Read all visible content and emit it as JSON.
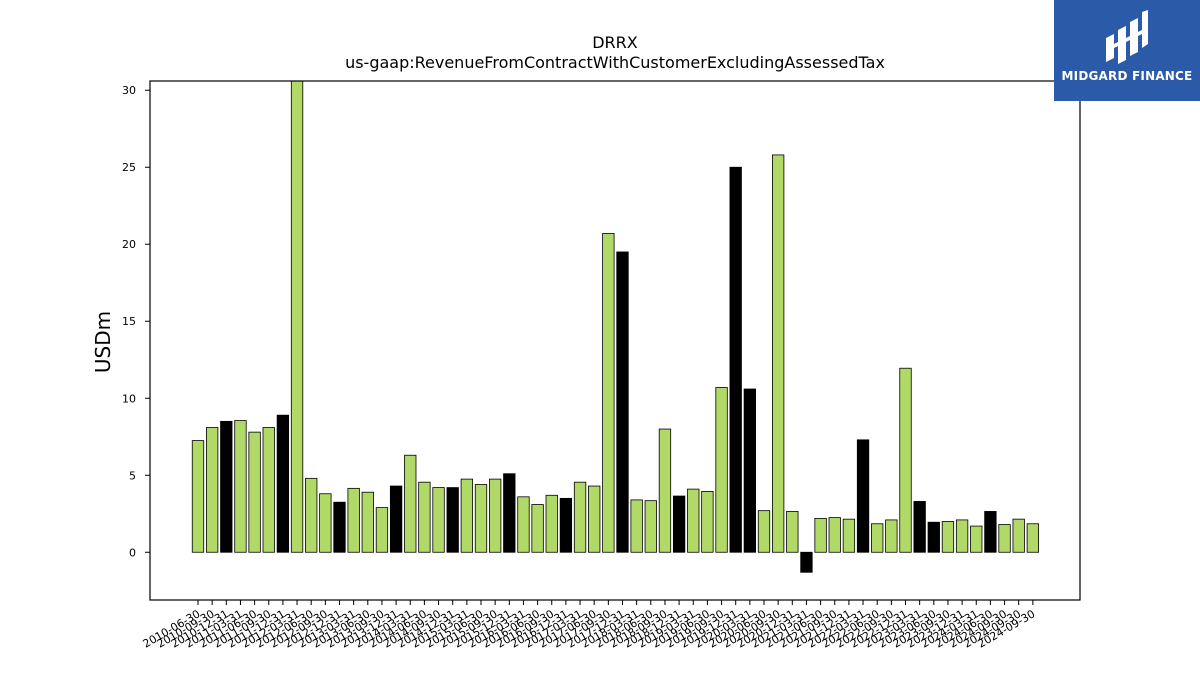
{
  "chart_data": {
    "type": "bar",
    "title": "DRRX",
    "subtitle": "us-gaap:RevenueFromContractWithCustomerExcludingAssessedTax",
    "ylabel": "USDm",
    "xlabel": "",
    "ylim": [
      -3.1,
      30.6
    ],
    "yticks": [
      0,
      5,
      10,
      15,
      20,
      25,
      30
    ],
    "grid": false,
    "colors": {
      "default": "#b0d967",
      "highlight": "#000000"
    },
    "categories": [
      "2010-06-30",
      "2010-09-30",
      "2010-12-31",
      "2011-03-31",
      "2011-06-30",
      "2011-09-30",
      "2011-12-31",
      "2012-03-31",
      "2012-06-30",
      "2012-09-30",
      "2012-12-31",
      "2013-03-31",
      "2013-06-30",
      "2013-09-30",
      "2013-12-31",
      "2014-03-31",
      "2014-06-30",
      "2014-09-30",
      "2014-12-31",
      "2015-03-31",
      "2015-06-30",
      "2015-09-30",
      "2015-12-31",
      "2016-03-31",
      "2016-06-30",
      "2016-09-30",
      "2016-12-31",
      "2017-03-31",
      "2017-06-30",
      "2017-09-30",
      "2017-12-31",
      "2018-03-31",
      "2018-06-30",
      "2018-09-30",
      "2018-12-31",
      "2019-03-31",
      "2019-06-30",
      "2019-09-30",
      "2019-12-31",
      "2020-03-31",
      "2020-06-30",
      "2020-09-30",
      "2020-12-31",
      "2021-03-31",
      "2021-06-30",
      "2021-09-30",
      "2021-12-31",
      "2022-03-31",
      "2022-06-30",
      "2022-09-30",
      "2022-12-31",
      "2023-03-31",
      "2023-06-30",
      "2023-09-30",
      "2023-12-31",
      "2024-03-31",
      "2024-06-30",
      "2024-09-30",
      "2024-09-30",
      "2024-09-30"
    ],
    "values": [
      7.25,
      8.1,
      8.5,
      8.55,
      7.8,
      8.1,
      8.9,
      30.7,
      4.8,
      3.8,
      3.25,
      4.15,
      3.9,
      2.9,
      4.3,
      6.3,
      4.55,
      4.2,
      4.2,
      4.75,
      4.4,
      4.75,
      5.1,
      3.6,
      3.1,
      3.7,
      3.5,
      4.55,
      4.3,
      20.7,
      19.5,
      3.4,
      3.35,
      8.0,
      3.65,
      4.1,
      3.95,
      10.7,
      25.0,
      10.6,
      2.7,
      25.8,
      2.65,
      -1.3,
      2.2,
      2.25,
      2.15,
      7.3,
      1.85,
      2.1,
      11.95,
      3.3,
      1.95,
      2.0,
      2.1,
      1.7,
      2.65,
      1.8,
      2.15,
      1.85
    ],
    "highlight": [
      false,
      false,
      true,
      false,
      false,
      false,
      true,
      false,
      false,
      false,
      true,
      false,
      false,
      false,
      true,
      false,
      false,
      false,
      true,
      false,
      false,
      false,
      true,
      false,
      false,
      false,
      true,
      false,
      false,
      false,
      true,
      false,
      false,
      false,
      true,
      false,
      false,
      false,
      true,
      true,
      false,
      false,
      false,
      true,
      false,
      false,
      false,
      true,
      false,
      false,
      false,
      true,
      true,
      false,
      false,
      false,
      true,
      false,
      false,
      false
    ]
  },
  "logo": {
    "text": "MIDGARD FINANCE"
  }
}
